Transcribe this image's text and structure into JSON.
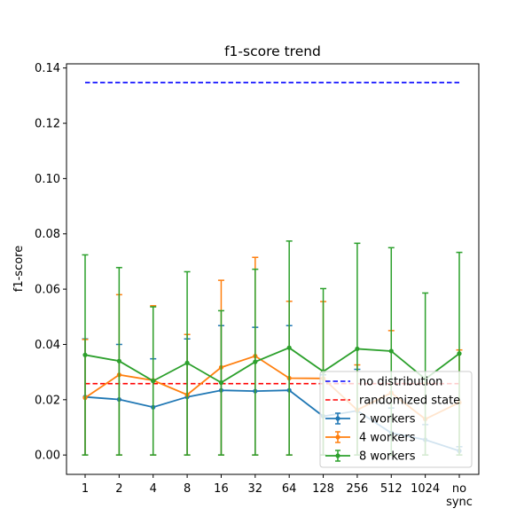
{
  "chart_data": {
    "type": "line",
    "title": "f1-score trend",
    "xlabel": "",
    "ylabel": "f1-score",
    "categories": [
      "1",
      "2",
      "4",
      "8",
      "16",
      "32",
      "64",
      "128",
      "256",
      "512",
      "1024",
      "no sync"
    ],
    "ylim": [
      -0.007,
      0.1415
    ],
    "yticks": [
      0.0,
      0.02,
      0.04,
      0.06,
      0.08,
      0.1,
      0.12,
      0.14
    ],
    "ytick_labels": [
      "0.00",
      "0.02",
      "0.04",
      "0.06",
      "0.08",
      "0.10",
      "0.12",
      "0.14"
    ],
    "grid": false,
    "legend_position": "lower-right",
    "reference_lines": [
      {
        "name": "no distribution",
        "value": 0.1347,
        "color": "#0000ff",
        "style": "dashed"
      },
      {
        "name": "randomized state",
        "value": 0.0258,
        "color": "#ff0000",
        "style": "dashed"
      }
    ],
    "series": [
      {
        "name": "2 workers",
        "color": "#1f77b4",
        "values": [
          0.021,
          0.0201,
          0.0173,
          0.021,
          0.0234,
          0.0231,
          0.0234,
          0.014,
          0.016,
          0.008,
          0.0055,
          0.0015
        ],
        "err_low": [
          0.0,
          0.0,
          0.0,
          0.0,
          0.0,
          0.0,
          0.0,
          0.0,
          0.0,
          0.0,
          0.0,
          0.0
        ],
        "err_high": [
          0.042,
          0.04,
          0.0348,
          0.042,
          0.0468,
          0.0462,
          0.0468,
          0.029,
          0.031,
          0.017,
          0.011,
          0.003
        ]
      },
      {
        "name": "4 workers",
        "color": "#ff7f0e",
        "values": [
          0.0207,
          0.029,
          0.027,
          0.0218,
          0.0317,
          0.0358,
          0.0278,
          0.0277,
          0.0163,
          0.0225,
          0.013,
          0.019
        ],
        "err_low": [
          0.0,
          0.0,
          0.0,
          0.0,
          0.0,
          0.0,
          0.0,
          0.0,
          0.0,
          0.0,
          0.0,
          0.0
        ],
        "err_high": [
          0.0418,
          0.058,
          0.054,
          0.0436,
          0.0632,
          0.0715,
          0.0556,
          0.0555,
          0.0326,
          0.045,
          0.026,
          0.038
        ]
      },
      {
        "name": "8 workers",
        "color": "#2ca02c",
        "values": [
          0.0362,
          0.034,
          0.0268,
          0.0333,
          0.0262,
          0.0337,
          0.0388,
          0.0302,
          0.0384,
          0.0376,
          0.0275,
          0.0367
        ],
        "err_low": [
          0.0,
          0.0,
          0.0,
          0.0,
          0.0,
          0.0,
          0.0,
          0.0,
          0.0,
          0.0,
          0.0,
          0.0
        ],
        "err_high": [
          0.0724,
          0.0678,
          0.0536,
          0.0663,
          0.0522,
          0.0672,
          0.0774,
          0.0602,
          0.0766,
          0.075,
          0.0586,
          0.0733
        ]
      }
    ]
  }
}
